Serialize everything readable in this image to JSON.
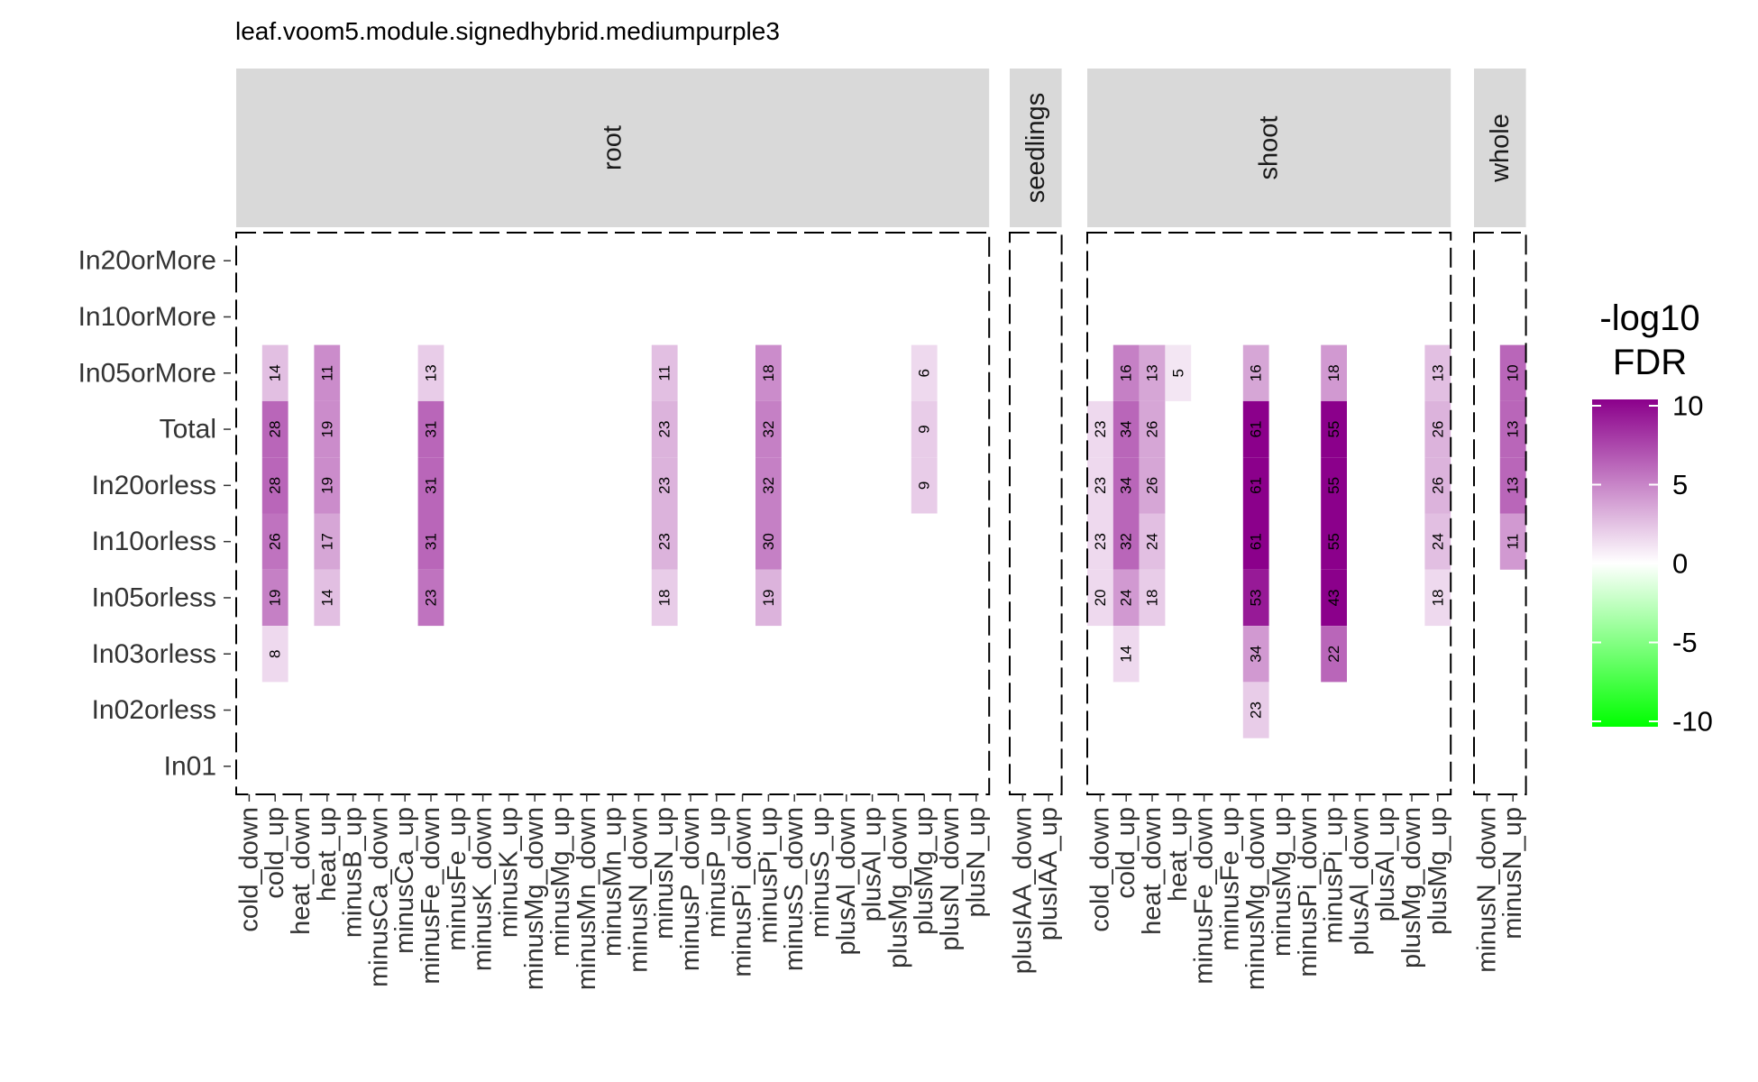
{
  "chart_data": {
    "type": "heatmap",
    "title": "leaf.voom5.module.signedhybrid.mediumpurple3",
    "xlabel": "",
    "ylabel": "",
    "rows": [
      "In20orMore",
      "In10orMore",
      "In05orMore",
      "Total",
      "In20orless",
      "In10orless",
      "In05orless",
      "In03orless",
      "In02orless",
      "In01"
    ],
    "panels": [
      {
        "label": "root",
        "columns": [
          "cold_down",
          "cold_up",
          "heat_down",
          "heat_up",
          "minusB_up",
          "minusCa_down",
          "minusCa_up",
          "minusFe_down",
          "minusFe_up",
          "minusK_down",
          "minusK_up",
          "minusMg_down",
          "minusMg_up",
          "minusMn_down",
          "minusMn_up",
          "minusN_down",
          "minusN_up",
          "minusP_down",
          "minusP_up",
          "minusPi_down",
          "minusPi_up",
          "minusS_down",
          "minusS_up",
          "plusAl_down",
          "plusAl_up",
          "plusMg_down",
          "plusMg_up",
          "plusN_down",
          "plusN_up"
        ],
        "cells": [
          {
            "col": "cold_up",
            "row": "In05orMore",
            "count": 14,
            "neglog10fdr": 2.5
          },
          {
            "col": "cold_up",
            "row": "Total",
            "count": 28,
            "neglog10fdr": 6
          },
          {
            "col": "cold_up",
            "row": "In20orless",
            "count": 28,
            "neglog10fdr": 6
          },
          {
            "col": "cold_up",
            "row": "In10orless",
            "count": 26,
            "neglog10fdr": 5.5
          },
          {
            "col": "cold_up",
            "row": "In05orless",
            "count": 19,
            "neglog10fdr": 5
          },
          {
            "col": "cold_up",
            "row": "In03orless",
            "count": 8,
            "neglog10fdr": 1.5
          },
          {
            "col": "heat_up",
            "row": "In05orMore",
            "count": 11,
            "neglog10fdr": 4.5
          },
          {
            "col": "heat_up",
            "row": "Total",
            "count": 19,
            "neglog10fdr": 4.5
          },
          {
            "col": "heat_up",
            "row": "In20orless",
            "count": 19,
            "neglog10fdr": 4.5
          },
          {
            "col": "heat_up",
            "row": "In10orless",
            "count": 17,
            "neglog10fdr": 3.5
          },
          {
            "col": "heat_up",
            "row": "In05orless",
            "count": 14,
            "neglog10fdr": 2.5
          },
          {
            "col": "minusFe_down",
            "row": "In05orMore",
            "count": 13,
            "neglog10fdr": 2
          },
          {
            "col": "minusFe_down",
            "row": "Total",
            "count": 31,
            "neglog10fdr": 6
          },
          {
            "col": "minusFe_down",
            "row": "In20orless",
            "count": 31,
            "neglog10fdr": 6
          },
          {
            "col": "minusFe_down",
            "row": "In10orless",
            "count": 31,
            "neglog10fdr": 6
          },
          {
            "col": "minusFe_down",
            "row": "In05orless",
            "count": 23,
            "neglog10fdr": 5.5
          },
          {
            "col": "minusN_up",
            "row": "In05orMore",
            "count": 11,
            "neglog10fdr": 2.5
          },
          {
            "col": "minusN_up",
            "row": "Total",
            "count": 23,
            "neglog10fdr": 3
          },
          {
            "col": "minusN_up",
            "row": "In20orless",
            "count": 23,
            "neglog10fdr": 3
          },
          {
            "col": "minusN_up",
            "row": "In10orless",
            "count": 23,
            "neglog10fdr": 3
          },
          {
            "col": "minusN_up",
            "row": "In05orless",
            "count": 18,
            "neglog10fdr": 2
          },
          {
            "col": "minusPi_up",
            "row": "In05orMore",
            "count": 18,
            "neglog10fdr": 4.5
          },
          {
            "col": "minusPi_up",
            "row": "Total",
            "count": 32,
            "neglog10fdr": 5
          },
          {
            "col": "minusPi_up",
            "row": "In20orless",
            "count": 32,
            "neglog10fdr": 5
          },
          {
            "col": "minusPi_up",
            "row": "In10orless",
            "count": 30,
            "neglog10fdr": 5
          },
          {
            "col": "minusPi_up",
            "row": "In05orless",
            "count": 19,
            "neglog10fdr": 3
          },
          {
            "col": "plusMg_up",
            "row": "In05orMore",
            "count": 6,
            "neglog10fdr": 1.5
          },
          {
            "col": "plusMg_up",
            "row": "Total",
            "count": 9,
            "neglog10fdr": 2
          },
          {
            "col": "plusMg_up",
            "row": "In20orless",
            "count": 9,
            "neglog10fdr": 2
          }
        ]
      },
      {
        "label": "seedlings",
        "columns": [
          "plusIAA_down",
          "plusIAA_up"
        ],
        "cells": []
      },
      {
        "label": "shoot",
        "columns": [
          "cold_down",
          "cold_up",
          "heat_down",
          "heat_up",
          "minusFe_down",
          "minusFe_up",
          "minusMg_down",
          "minusMg_up",
          "minusPi_down",
          "minusPi_up",
          "plusAl_down",
          "plusAl_up",
          "plusMg_down",
          "plusMg_up"
        ],
        "cells": [
          {
            "col": "cold_down",
            "row": "Total",
            "count": 23,
            "neglog10fdr": 1.5
          },
          {
            "col": "cold_down",
            "row": "In20orless",
            "count": 23,
            "neglog10fdr": 1.5
          },
          {
            "col": "cold_down",
            "row": "In10orless",
            "count": 23,
            "neglog10fdr": 1.5
          },
          {
            "col": "cold_down",
            "row": "In05orless",
            "count": 20,
            "neglog10fdr": 1.5
          },
          {
            "col": "cold_up",
            "row": "In05orMore",
            "count": 16,
            "neglog10fdr": 5
          },
          {
            "col": "cold_up",
            "row": "Total",
            "count": 34,
            "neglog10fdr": 6
          },
          {
            "col": "cold_up",
            "row": "In20orless",
            "count": 34,
            "neglog10fdr": 6
          },
          {
            "col": "cold_up",
            "row": "In10orless",
            "count": 32,
            "neglog10fdr": 6
          },
          {
            "col": "cold_up",
            "row": "In05orless",
            "count": 24,
            "neglog10fdr": 4
          },
          {
            "col": "cold_up",
            "row": "In03orless",
            "count": 14,
            "neglog10fdr": 1.5
          },
          {
            "col": "heat_down",
            "row": "In05orMore",
            "count": 13,
            "neglog10fdr": 3.5
          },
          {
            "col": "heat_down",
            "row": "Total",
            "count": 26,
            "neglog10fdr": 3.5
          },
          {
            "col": "heat_down",
            "row": "In20orless",
            "count": 26,
            "neglog10fdr": 3.5
          },
          {
            "col": "heat_down",
            "row": "In10orless",
            "count": 24,
            "neglog10fdr": 2.5
          },
          {
            "col": "heat_down",
            "row": "In05orless",
            "count": 18,
            "neglog10fdr": 2
          },
          {
            "col": "heat_up",
            "row": "In05orMore",
            "count": 5,
            "neglog10fdr": 1
          },
          {
            "col": "minusMg_down",
            "row": "In05orMore",
            "count": 16,
            "neglog10fdr": 3.5
          },
          {
            "col": "minusMg_down",
            "row": "Total",
            "count": 61,
            "neglog10fdr": 10
          },
          {
            "col": "minusMg_down",
            "row": "In20orless",
            "count": 61,
            "neglog10fdr": 10
          },
          {
            "col": "minusMg_down",
            "row": "In10orless",
            "count": 61,
            "neglog10fdr": 10
          },
          {
            "col": "minusMg_down",
            "row": "In05orless",
            "count": 53,
            "neglog10fdr": 9
          },
          {
            "col": "minusMg_down",
            "row": "In03orless",
            "count": 34,
            "neglog10fdr": 4
          },
          {
            "col": "minusMg_down",
            "row": "In02orless",
            "count": 23,
            "neglog10fdr": 2
          },
          {
            "col": "minusPi_up",
            "row": "In05orMore",
            "count": 18,
            "neglog10fdr": 4
          },
          {
            "col": "minusPi_up",
            "row": "Total",
            "count": 55,
            "neglog10fdr": 10
          },
          {
            "col": "minusPi_up",
            "row": "In20orless",
            "count": 55,
            "neglog10fdr": 10
          },
          {
            "col": "minusPi_up",
            "row": "In10orless",
            "count": 55,
            "neglog10fdr": 10
          },
          {
            "col": "minusPi_up",
            "row": "In05orless",
            "count": 43,
            "neglog10fdr": 10
          },
          {
            "col": "minusPi_up",
            "row": "In03orless",
            "count": 22,
            "neglog10fdr": 6
          },
          {
            "col": "plusMg_up",
            "row": "In05orMore",
            "count": 13,
            "neglog10fdr": 2.5
          },
          {
            "col": "plusMg_up",
            "row": "Total",
            "count": 26,
            "neglog10fdr": 3
          },
          {
            "col": "plusMg_up",
            "row": "In20orless",
            "count": 26,
            "neglog10fdr": 3
          },
          {
            "col": "plusMg_up",
            "row": "In10orless",
            "count": 24,
            "neglog10fdr": 2.5
          },
          {
            "col": "plusMg_up",
            "row": "In05orless",
            "count": 18,
            "neglog10fdr": 1.5
          }
        ]
      },
      {
        "label": "whole",
        "columns": [
          "minusN_down",
          "minusN_up"
        ],
        "cells": [
          {
            "col": "minusN_up",
            "row": "In05orMore",
            "count": 10,
            "neglog10fdr": 6
          },
          {
            "col": "minusN_up",
            "row": "Total",
            "count": 13,
            "neglog10fdr": 6
          },
          {
            "col": "minusN_up",
            "row": "In20orless",
            "count": 13,
            "neglog10fdr": 6
          },
          {
            "col": "minusN_up",
            "row": "In10orless",
            "count": 11,
            "neglog10fdr": 4
          }
        ]
      }
    ],
    "legend": {
      "title_lines": [
        "-log10",
        "FDR"
      ],
      "ticks": [
        10,
        5,
        0,
        -5,
        -10
      ],
      "range": [
        -10,
        10
      ],
      "colors": {
        "high": "#8B008B",
        "mid": "#FFFFFF",
        "low": "#00FF00"
      },
      "placement": "right"
    }
  }
}
